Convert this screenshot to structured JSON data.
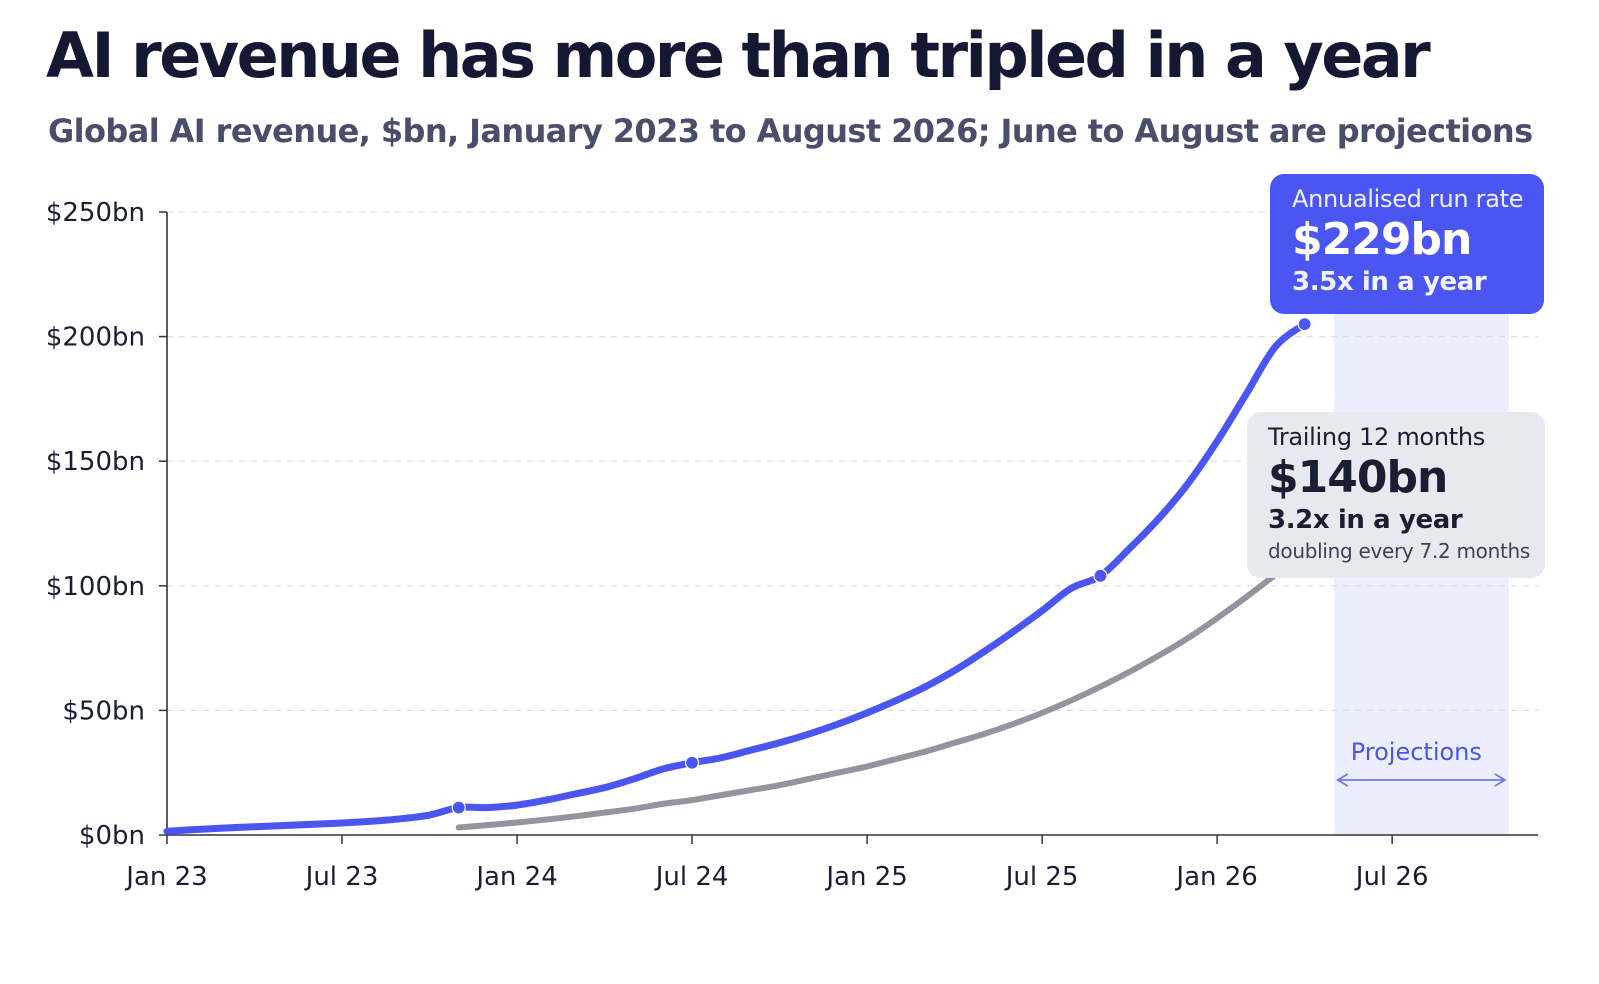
{
  "title": "AI revenue has more than tripled in a year",
  "subtitle": "Global AI revenue, $bn, January 2023 to August 2026; June to August are projections",
  "callouts": {
    "run_rate": {
      "label": "Annualised run rate",
      "value": "$229bn",
      "multiple": "3.5x in a year"
    },
    "trailing": {
      "label": "Trailing 12 months",
      "value": "$140bn",
      "multiple": "3.2x in a year",
      "note": "doubling every 7.2 months"
    }
  },
  "colors": {
    "run_rate": "#4a55f2",
    "trailing": "#93949e",
    "projection_band": "#eceefd",
    "projection_accent": "#6f78ee",
    "grid": "#dcdde8",
    "axis": "#333333"
  },
  "chart_data": {
    "type": "line",
    "title": "AI revenue has more than tripled in a year",
    "subtitle": "Global AI revenue, $bn, January 2023 to August 2026; June to August are projections",
    "x_unit": "month",
    "x_ticks": [
      {
        "label": "Jan 23",
        "x": "2023-01"
      },
      {
        "label": "Jul 23",
        "x": "2023-07"
      },
      {
        "label": "Jan 24",
        "x": "2024-01"
      },
      {
        "label": "Jul 24",
        "x": "2024-07"
      },
      {
        "label": "Jan 25",
        "x": "2025-01"
      },
      {
        "label": "Jul 25",
        "x": "2025-07"
      },
      {
        "label": "Jan 26",
        "x": "2026-01"
      },
      {
        "label": "Jul 26",
        "x": "2026-07"
      }
    ],
    "y_ticks": [
      {
        "label": "$0bn",
        "value": 0
      },
      {
        "label": "$50bn",
        "value": 50
      },
      {
        "label": "$100bn",
        "value": 100
      },
      {
        "label": "$150bn",
        "value": 150
      },
      {
        "label": "$200bn",
        "value": 200
      },
      {
        "label": "$250bn",
        "value": 250
      }
    ],
    "ylim": [
      0,
      250
    ],
    "xlim": [
      "2023-01",
      "2026-12"
    ],
    "grid": true,
    "projection": {
      "label": "Projections",
      "from": "2026-05",
      "to": "2026-11"
    },
    "series": [
      {
        "id": "run_rate",
        "points": [
          [
            "2023-01",
            1.5
          ],
          [
            "2023-02",
            2.2
          ],
          [
            "2023-03",
            2.8
          ],
          [
            "2023-04",
            3.3
          ],
          [
            "2023-05",
            3.8
          ],
          [
            "2023-06",
            4.3
          ],
          [
            "2023-07",
            4.8
          ],
          [
            "2023-08",
            5.5
          ],
          [
            "2023-09",
            6.5
          ],
          [
            "2023-10",
            8.0
          ],
          [
            "2023-11",
            11.0
          ],
          [
            "2023-12",
            11.0
          ],
          [
            "2024-01",
            12.0
          ],
          [
            "2024-02",
            14.0
          ],
          [
            "2024-03",
            16.5
          ],
          [
            "2024-04",
            19.0
          ],
          [
            "2024-05",
            22.5
          ],
          [
            "2024-06",
            26.5
          ],
          [
            "2024-07",
            29.0
          ],
          [
            "2024-08",
            31.0
          ],
          [
            "2024-09",
            34.0
          ],
          [
            "2024-10",
            37.0
          ],
          [
            "2024-11",
            40.5
          ],
          [
            "2024-12",
            44.5
          ],
          [
            "2025-01",
            49.0
          ],
          [
            "2025-02",
            54.0
          ],
          [
            "2025-03",
            59.5
          ],
          [
            "2025-04",
            66.0
          ],
          [
            "2025-05",
            73.5
          ],
          [
            "2025-06",
            81.5
          ],
          [
            "2025-07",
            90.0
          ],
          [
            "2025-08",
            99.0
          ],
          [
            "2025-09",
            104.0
          ],
          [
            "2025-10",
            115.0
          ],
          [
            "2025-11",
            127.0
          ],
          [
            "2025-12",
            141.0
          ],
          [
            "2026-01",
            158.0
          ],
          [
            "2026-02",
            177.0
          ],
          [
            "2026-03",
            196.0
          ],
          [
            "2026-04",
            205.0
          ]
        ],
        "projected_points": [
          [
            "2026-04",
            205.0
          ],
          [
            "2026-05",
            212.0
          ],
          [
            "2026-06",
            219.0
          ],
          [
            "2026-07",
            224.0
          ],
          [
            "2026-08",
            229.0
          ]
        ],
        "highlighted_points": [
          [
            "2023-11",
            11.0
          ],
          [
            "2024-07",
            29.0
          ],
          [
            "2025-09",
            104.0
          ],
          [
            "2026-04",
            205.0
          ]
        ],
        "end_point": [
          "2026-08",
          229.0
        ]
      },
      {
        "id": "trailing",
        "points": [
          [
            "2023-11",
            3.0
          ],
          [
            "2023-12",
            4.0
          ],
          [
            "2024-01",
            5.0
          ],
          [
            "2024-02",
            6.2
          ],
          [
            "2024-03",
            7.5
          ],
          [
            "2024-04",
            9.0
          ],
          [
            "2024-05",
            10.5
          ],
          [
            "2024-06",
            12.5
          ],
          [
            "2024-07",
            14.0
          ],
          [
            "2024-08",
            16.0
          ],
          [
            "2024-09",
            18.0
          ],
          [
            "2024-10",
            20.0
          ],
          [
            "2024-11",
            22.5
          ],
          [
            "2024-12",
            25.0
          ],
          [
            "2025-01",
            27.5
          ],
          [
            "2025-02",
            30.5
          ],
          [
            "2025-03",
            33.5
          ],
          [
            "2025-04",
            37.0
          ],
          [
            "2025-05",
            40.5
          ],
          [
            "2025-06",
            44.5
          ],
          [
            "2025-07",
            49.0
          ],
          [
            "2025-08",
            54.0
          ],
          [
            "2025-09",
            59.5
          ],
          [
            "2025-10",
            65.5
          ],
          [
            "2025-11",
            72.0
          ],
          [
            "2025-12",
            79.0
          ],
          [
            "2026-01",
            87.0
          ],
          [
            "2026-02",
            95.5
          ],
          [
            "2026-03",
            104.5
          ],
          [
            "2026-04",
            114.0
          ],
          [
            "2026-05",
            124.0
          ],
          [
            "2026-06",
            133.0
          ],
          [
            "2026-07",
            140.0
          ]
        ],
        "end_point": [
          "2026-07",
          140.0
        ]
      }
    ]
  }
}
